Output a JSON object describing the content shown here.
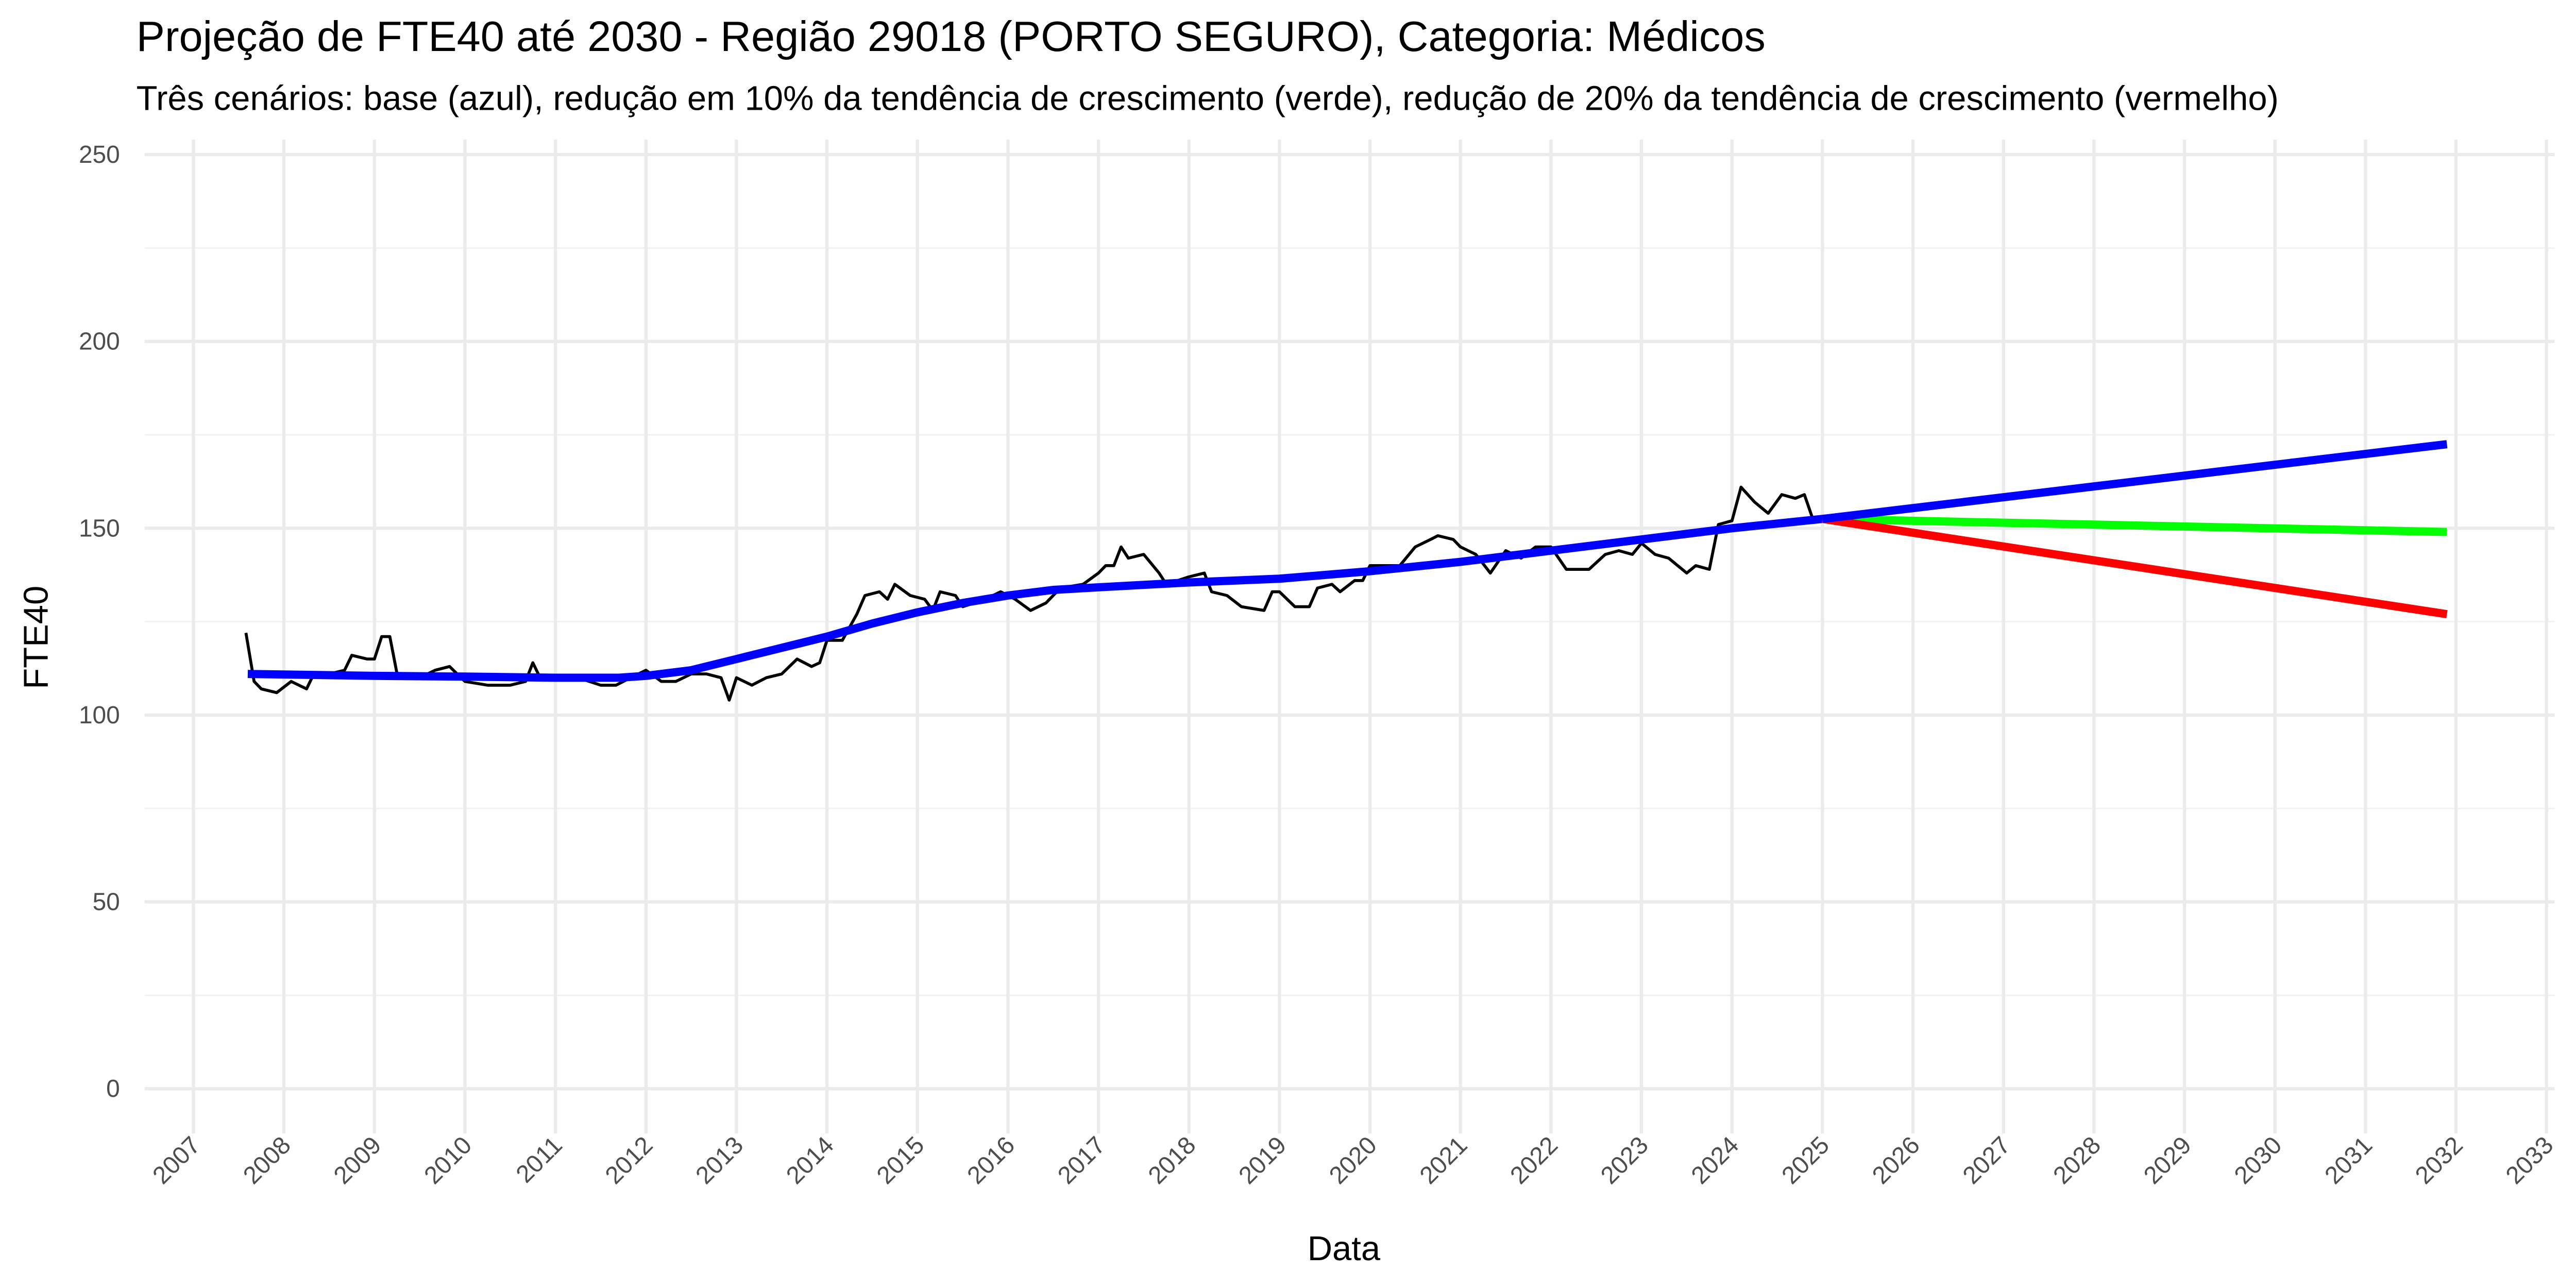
{
  "chart_data": {
    "type": "line",
    "title": "Projeção de FTE40 até 2030 - Região 29018 (PORTO SEGURO), Categoria: Médicos",
    "subtitle": "Três cenários: base (azul), redução em 10% da tendência de crescimento (verde), redução de 20% da tendência de crescimento (vermelho)",
    "x_label": "Data",
    "y_label": "FTE40",
    "xlim": [
      2006.46,
      2033.09
    ],
    "ylim": [
      -12,
      254
    ],
    "xticks": [
      2007,
      2008,
      2009,
      2010,
      2011,
      2012,
      2013,
      2014,
      2015,
      2016,
      2017,
      2018,
      2019,
      2020,
      2021,
      2022,
      2023,
      2024,
      2025,
      2026,
      2027,
      2028,
      2029,
      2030,
      2031,
      2032,
      2033
    ],
    "yticks": [
      0,
      50,
      100,
      150,
      200,
      250
    ],
    "y_minor_ticks": [
      25,
      75,
      125,
      175,
      225
    ],
    "grid": true,
    "series": [
      {
        "color": "#000000",
        "width": 1.8,
        "x": [
          2007.58,
          2007.67,
          2007.75,
          2007.92,
          2008.08,
          2008.25,
          2008.33,
          2008.5,
          2008.67,
          2008.75,
          2008.92,
          2009.0,
          2009.08,
          2009.17,
          2009.25,
          2009.5,
          2009.67,
          2009.83,
          2010.0,
          2010.25,
          2010.5,
          2010.67,
          2010.75,
          2010.83,
          2011.0,
          2011.25,
          2011.5,
          2011.67,
          2011.83,
          2012.0,
          2012.17,
          2012.33,
          2012.5,
          2012.67,
          2012.83,
          2012.92,
          2013.0,
          2013.17,
          2013.33,
          2013.5,
          2013.67,
          2013.83,
          2013.92,
          2014.0,
          2014.17,
          2014.33,
          2014.42,
          2014.58,
          2014.67,
          2014.75,
          2014.92,
          2015.08,
          2015.17,
          2015.25,
          2015.42,
          2015.5,
          2015.75,
          2015.92,
          2016.08,
          2016.25,
          2016.42,
          2016.58,
          2016.83,
          2017.0,
          2017.08,
          2017.17,
          2017.25,
          2017.33,
          2017.5,
          2017.67,
          2017.75,
          2018.0,
          2018.17,
          2018.25,
          2018.42,
          2018.58,
          2018.83,
          2018.92,
          2019.0,
          2019.17,
          2019.33,
          2019.42,
          2019.58,
          2019.67,
          2019.83,
          2019.92,
          2020.0,
          2020.17,
          2020.33,
          2020.5,
          2020.67,
          2020.75,
          2020.92,
          2021.0,
          2021.17,
          2021.33,
          2021.5,
          2021.67,
          2021.83,
          2022.0,
          2022.17,
          2022.42,
          2022.6,
          2022.75,
          2022.9,
          2023.0,
          2023.15,
          2023.3,
          2023.5,
          2023.6,
          2023.75,
          2023.85,
          2024.0,
          2024.1,
          2024.25,
          2024.4,
          2024.55,
          2024.7,
          2024.8,
          2024.9
        ],
        "values": [
          122,
          109,
          107,
          106,
          109,
          107,
          111,
          111,
          112,
          116,
          115,
          115,
          121,
          121,
          111,
          110,
          112,
          113,
          109,
          108,
          108,
          109,
          114,
          110,
          110,
          110,
          108,
          108,
          110,
          112,
          109,
          109,
          111,
          111,
          110,
          104,
          110,
          108,
          110,
          111,
          115,
          113,
          114,
          120,
          120,
          127,
          132,
          133,
          131,
          135,
          132,
          131,
          128,
          133,
          132,
          129,
          131,
          133,
          131,
          128,
          130,
          134,
          135,
          138,
          140,
          140,
          145,
          142,
          143,
          138,
          135,
          137,
          138,
          133,
          132,
          129,
          128,
          133,
          133,
          129,
          129,
          134,
          135,
          133,
          136,
          136,
          140,
          140,
          140,
          145,
          147,
          148,
          147,
          145,
          143,
          138,
          144,
          142,
          145,
          145,
          139,
          139,
          143,
          144,
          143,
          146,
          143,
          142,
          138,
          140,
          139,
          151,
          152,
          161,
          157,
          154,
          159,
          158,
          159,
          152
        ]
      },
      {
        "color": "#0000ff",
        "width": 5,
        "x": [
          2007.6,
          2009,
          2010,
          2011,
          2011.7,
          2012,
          2012.5,
          2013,
          2013.5,
          2014,
          2014.5,
          2015,
          2015.5,
          2016,
          2016.5,
          2017,
          2018,
          2019,
          2020,
          2021,
          2022,
          2023,
          2024,
          2025
        ],
        "values": [
          111,
          110.5,
          110.3,
          110,
          110,
          110.5,
          112,
          115,
          118,
          121,
          124.5,
          127.5,
          130,
          132,
          133.5,
          134.2,
          135.5,
          136.5,
          138.5,
          141,
          144,
          147,
          150,
          152.5
        ]
      },
      {
        "color": "#00ff00",
        "width": 5,
        "x": [
          2025,
          2031.9
        ],
        "values": [
          152.5,
          149
        ]
      },
      {
        "color": "#ff0000",
        "width": 5,
        "x": [
          2025,
          2031.9
        ],
        "values": [
          152.5,
          127
        ]
      },
      {
        "color": "#0000ff",
        "width": 5,
        "x": [
          2025,
          2031.9
        ],
        "values": [
          152.5,
          172.5
        ]
      }
    ]
  }
}
